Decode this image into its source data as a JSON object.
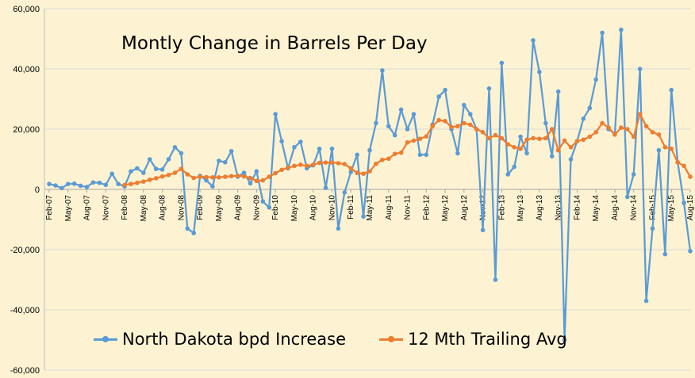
{
  "chart_data": {
    "type": "line",
    "title": "Montly Change in Barrels Per Day",
    "xlabel": "",
    "ylabel": "",
    "ylim": [
      -60000,
      60000
    ],
    "yticks": [
      -60000,
      -40000,
      -20000,
      0,
      20000,
      40000,
      60000
    ],
    "ytick_labels": [
      "-60,000",
      "-40,000",
      "-20,000",
      "0",
      "20,000",
      "40,000",
      "60,000"
    ],
    "grid": true,
    "legend_position": "bottom",
    "x_start": "Feb-07",
    "x_ticks": [
      "Feb-07",
      "May-07",
      "Aug-07",
      "Nov-07",
      "Feb-08",
      "May-08",
      "Aug-08",
      "Nov-08",
      "Feb-09",
      "May-09",
      "Aug-09",
      "Nov-09",
      "Feb-10",
      "May-10",
      "Aug-10",
      "Nov-10",
      "Feb-11",
      "May-11",
      "Aug-11",
      "Nov-11",
      "Feb-12",
      "May-12",
      "Aug-12",
      "Nov-12",
      "Feb-13",
      "May-13",
      "Aug-13",
      "Nov-13",
      "Feb-14",
      "May-14",
      "Aug-14",
      "Nov-14",
      "Feb-15",
      "May-15",
      "Aug-15"
    ],
    "series": [
      {
        "name": "North Dakota bpd Increase",
        "color": "#5b9bd5",
        "start_index": 0,
        "values": [
          1800,
          1300,
          400,
          1800,
          1900,
          1200,
          800,
          2300,
          2200,
          1500,
          5200,
          1800,
          1000,
          6000,
          7000,
          5500,
          10000,
          6800,
          6600,
          10000,
          14000,
          12000,
          -13000,
          -14500,
          4500,
          3000,
          1000,
          9500,
          9000,
          12700,
          4200,
          5500,
          2000,
          6000,
          -4000,
          -6000,
          25000,
          16000,
          7000,
          14000,
          15800,
          7000,
          8000,
          13500,
          500,
          13500,
          -13000,
          -1000,
          5800,
          11500,
          -9000,
          13000,
          22000,
          39500,
          21000,
          18000,
          26500,
          20000,
          25000,
          11500,
          11500,
          21500,
          30800,
          33000,
          20000,
          12000,
          28000,
          25000,
          20000,
          -13500,
          33500,
          -30000,
          42000,
          5000,
          7500,
          17500,
          12000,
          49500,
          39000,
          22000,
          11000,
          32500,
          -50000,
          10000,
          16000,
          23500,
          27000,
          36500,
          52000,
          20000,
          18500,
          53000,
          -2500,
          5000,
          40000,
          -37000,
          -13000,
          13000,
          -21500,
          33000,
          9000,
          -4500,
          -20500
        ]
      },
      {
        "name": "12 Mth Trailing Avg",
        "color": "#ed7d31",
        "start_index": 12,
        "values": [
          1500,
          1800,
          2200,
          2600,
          3200,
          3700,
          4300,
          4800,
          5500,
          6800,
          5000,
          3800,
          4200,
          4100,
          4000,
          4000,
          4200,
          4400,
          4500,
          4300,
          3800,
          2800,
          3000,
          4200,
          5400,
          6500,
          7200,
          7800,
          8200,
          7800,
          8200,
          8800,
          8900,
          8900,
          8700,
          8400,
          7000,
          5500,
          5200,
          6000,
          8500,
          9800,
          10200,
          11800,
          12200,
          15600,
          16200,
          16800,
          17600,
          21000,
          23000,
          22700,
          20700,
          21000,
          22000,
          21500,
          20000,
          19000,
          17000,
          18000,
          17000,
          15000,
          14000,
          13500,
          16500,
          17000,
          16800,
          17000,
          20000,
          13000,
          16200,
          14000,
          16000,
          16500,
          17500,
          19000,
          22000,
          20500,
          18200,
          20500,
          20000,
          17500,
          25000,
          21000,
          19000,
          18200,
          14000,
          13500,
          9000,
          7800,
          4200
        ]
      }
    ]
  }
}
